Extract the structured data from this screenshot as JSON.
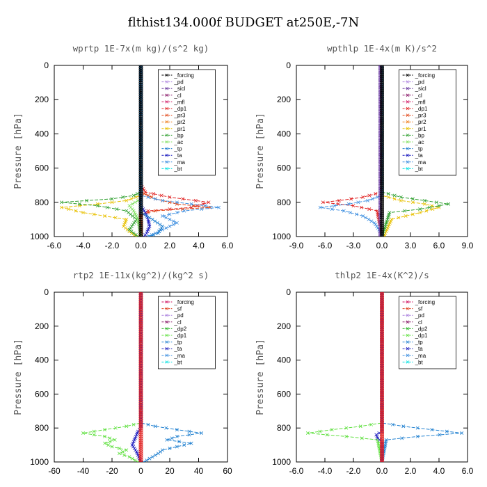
{
  "figure_title": "flthist134.000f  BUDGET at250E,-7N",
  "colors": {
    "forcing": "#000000",
    "pd": "#b088e0",
    "sicl": "#6a3aa0",
    "cl": "#8a1a6a",
    "mfl": "#d01060",
    "dp1": "#e02020",
    "pr3": "#e04010",
    "pr2": "#f08020",
    "pr1": "#e8c000",
    "bp": "#30a030",
    "ac": "#80e060",
    "tp": "#2080d0",
    "ta": "#2020c0",
    "ma": "#4090e0",
    "bt": "#00e0e0",
    "sf": "#e04020",
    "dp2": "#20b020",
    "dp1b": "#60e040"
  },
  "chart_data": [
    {
      "type": "line",
      "title": "wprtp  1E-7x(m kg)/(s^2 kg)",
      "ylabel": "Pressure [hPa]",
      "xlim": [
        -6,
        6
      ],
      "ylim": [
        1000,
        0
      ],
      "xticks": [
        "-6.0",
        "-4.0",
        "-2.0",
        "0.0",
        "2.0",
        "4.0",
        "6.0"
      ],
      "yticks": [
        "0",
        "200",
        "400",
        "600",
        "800",
        "1000"
      ],
      "legend": [
        "_forcing",
        "_pd",
        "_sicl",
        "_cl",
        "_mfl",
        "_dp1",
        "_pr3",
        "_pr2",
        "_pr1",
        "_bp",
        "_ac",
        "_tp",
        "_ta",
        "_ma",
        "_bt"
      ],
      "series": [
        {
          "name": "_dp1",
          "color": "#e02020",
          "p": [
            0,
            700,
            740,
            770,
            800,
            830,
            850,
            880,
            920,
            960,
            1000
          ],
          "v": [
            0,
            0,
            0.3,
            2,
            4.7,
            3.5,
            0.5,
            0,
            0,
            0,
            0
          ]
        },
        {
          "name": "_pr3",
          "color": "#e04010",
          "p": [
            0,
            740,
            780,
            810,
            830,
            850,
            870,
            1000
          ],
          "v": [
            0,
            0,
            1,
            2.5,
            4.8,
            1,
            0,
            0
          ]
        },
        {
          "name": "_pr1",
          "color": "#e8c000",
          "p": [
            0,
            760,
            790,
            810,
            830,
            860,
            900,
            940,
            970,
            1000
          ],
          "v": [
            0,
            0,
            -1,
            -3,
            -5.5,
            -4,
            -1,
            -1.2,
            -0.8,
            -0.3
          ]
        },
        {
          "name": "_bp",
          "color": "#30a030",
          "p": [
            0,
            740,
            760,
            780,
            800,
            820,
            850,
            900,
            960,
            1000
          ],
          "v": [
            0,
            0,
            -0.5,
            -2,
            -5.5,
            -3,
            -1,
            -0.3,
            -0.8,
            -0.2
          ]
        },
        {
          "name": "_ac",
          "color": "#80e060",
          "p": [
            0,
            780,
            820,
            850,
            900,
            1000
          ],
          "v": [
            0,
            0,
            -0.8,
            -0.5,
            -0.2,
            0
          ]
        },
        {
          "name": "_ta",
          "color": "#2020c0",
          "p": [
            0,
            820,
            860,
            900,
            940,
            980,
            1000
          ],
          "v": [
            0,
            0,
            0.3,
            0.5,
            0.6,
            0.4,
            0.2
          ]
        },
        {
          "name": "_ma",
          "color": "#4090e0",
          "p": [
            0,
            760,
            790,
            810,
            830,
            850,
            880,
            920,
            960,
            1000
          ],
          "v": [
            0,
            0,
            1.5,
            3.5,
            5.4,
            3,
            1.5,
            2.5,
            1.5,
            0.5
          ]
        },
        {
          "name": "_tp",
          "color": "#2080d0",
          "p": [
            0,
            860,
            900,
            940,
            980,
            1000
          ],
          "v": [
            0,
            0,
            0.8,
            1.5,
            1.2,
            0.6
          ]
        },
        {
          "name": "_forcing",
          "color": "#000000",
          "p": [
            0,
            1000
          ],
          "v": [
            0,
            0
          ]
        }
      ]
    },
    {
      "type": "line",
      "title": "wpthlp  1E-4x(m K)/s^2",
      "ylabel": "Pressure [hPa]",
      "xlim": [
        -9,
        9
      ],
      "ylim": [
        1000,
        0
      ],
      "xticks": [
        "-9.0",
        "-6.0",
        "-3.0",
        "0.0",
        "3.0",
        "6.0",
        "9.0"
      ],
      "yticks": [
        "0",
        "200",
        "400",
        "600",
        "800",
        "1000"
      ],
      "legend": [
        "_forcing",
        "_pd",
        "_sicl",
        "_cl",
        "_mfl",
        "_dp1",
        "_pr3",
        "_pr2",
        "_pr1",
        "_bp",
        "_ac",
        "_tp",
        "_ta",
        "_ma",
        "_bt"
      ],
      "series": [
        {
          "name": "_dp1",
          "color": "#e02020",
          "p": [
            0,
            740,
            770,
            790,
            800,
            820,
            850,
            1000
          ],
          "v": [
            0,
            0,
            -2,
            -4.5,
            -6.2,
            -3,
            -0.5,
            0
          ]
        },
        {
          "name": "_pr1",
          "color": "#e8c000",
          "p": [
            0,
            760,
            790,
            810,
            830,
            860,
            900,
            1000
          ],
          "v": [
            0,
            0,
            2,
            4.5,
            6,
            4,
            1,
            0.2
          ]
        },
        {
          "name": "_bp",
          "color": "#30a030",
          "p": [
            0,
            740,
            770,
            790,
            810,
            840,
            860,
            1000
          ],
          "v": [
            0,
            0,
            2,
            4.5,
            7,
            4,
            0.8,
            0
          ]
        },
        {
          "name": "_ma",
          "color": "#4090e0",
          "p": [
            0,
            760,
            790,
            810,
            830,
            850,
            880,
            920,
            960,
            1000
          ],
          "v": [
            0,
            0,
            -1.5,
            -3.5,
            -6.5,
            -4,
            -2,
            -0.8,
            -0.3,
            0
          ]
        },
        {
          "name": "_sicl",
          "color": "#6a3aa0",
          "p": [
            0,
            1000
          ],
          "v": [
            -0.2,
            -0.2
          ]
        },
        {
          "name": "_forcing",
          "color": "#000000",
          "p": [
            0,
            1000
          ],
          "v": [
            0,
            0
          ]
        }
      ]
    },
    {
      "type": "line",
      "title": "rtp2  1E-11x(kg^2)/(kg^2 s)",
      "ylabel": "Pressure [hPa]",
      "xlim": [
        -60,
        60
      ],
      "ylim": [
        1000,
        0
      ],
      "xticks": [
        "-60",
        "-40",
        "-20",
        "0",
        "20",
        "40",
        "60"
      ],
      "yticks": [
        "0",
        "200",
        "400",
        "600",
        "800",
        "1000"
      ],
      "legend": [
        "_forcing",
        "_sf",
        "_pd",
        "_cl",
        "_dp2",
        "_dp1",
        "_tp",
        "_ta",
        "_ma",
        "_bt"
      ],
      "series": [
        {
          "name": "_dp1",
          "color": "#60e040",
          "p": [
            0,
            770,
            790,
            810,
            830,
            850,
            870,
            890,
            910,
            930,
            950,
            970,
            990,
            1000
          ],
          "v": [
            0,
            0,
            -10,
            -25,
            -40,
            -25,
            -18,
            -25,
            -20,
            -10,
            -15,
            -8,
            -4,
            -2
          ]
        },
        {
          "name": "_tp",
          "color": "#2080d0",
          "p": [
            0,
            770,
            790,
            810,
            830,
            850,
            870,
            890,
            910,
            930,
            950,
            970,
            990,
            1000
          ],
          "v": [
            0,
            0,
            10,
            25,
            42,
            25,
            18,
            35,
            25,
            15,
            12,
            8,
            4,
            2
          ]
        },
        {
          "name": "_ta",
          "color": "#2020c0",
          "p": [
            0,
            800,
            820,
            860,
            900,
            940,
            980,
            1000
          ],
          "v": [
            0,
            0,
            -2,
            -4,
            -6,
            -3,
            -1,
            0
          ]
        },
        {
          "name": "_forcing",
          "color": "#e02020",
          "p": [
            0,
            1000
          ],
          "v": [
            0,
            0
          ]
        }
      ]
    },
    {
      "type": "line",
      "title": "thlp2  1E-4x(K^2)/s",
      "ylabel": "Pressure [hPa]",
      "xlim": [
        -6,
        6
      ],
      "ylim": [
        1000,
        0
      ],
      "xticks": [
        "-6.0",
        "-4.0",
        "-2.0",
        "0.0",
        "2.0",
        "4.0",
        "6.0"
      ],
      "yticks": [
        "0",
        "200",
        "400",
        "600",
        "800",
        "1000"
      ],
      "legend": [
        "_forcing",
        "_sf",
        "_pd",
        "_cl",
        "_dp2",
        "_dp1",
        "_tp",
        "_ta",
        "_ma",
        "_bt"
      ],
      "series": [
        {
          "name": "_dp1",
          "color": "#60e040",
          "p": [
            0,
            770,
            790,
            810,
            830,
            850,
            870,
            1000
          ],
          "v": [
            0,
            0,
            -1.5,
            -3.5,
            -5.2,
            -2.5,
            -0.3,
            0
          ]
        },
        {
          "name": "_tp",
          "color": "#2080d0",
          "p": [
            0,
            770,
            790,
            810,
            830,
            850,
            870,
            1000
          ],
          "v": [
            0,
            0,
            1.5,
            3.5,
            5.6,
            2.5,
            0.3,
            0
          ]
        },
        {
          "name": "_ta",
          "color": "#2020c0",
          "p": [
            0,
            820,
            840,
            860,
            880,
            1000
          ],
          "v": [
            0,
            0,
            -0.4,
            -0.3,
            0,
            0
          ]
        },
        {
          "name": "_forcing",
          "color": "#e02020",
          "p": [
            0,
            1000
          ],
          "v": [
            0,
            0
          ]
        }
      ]
    }
  ]
}
